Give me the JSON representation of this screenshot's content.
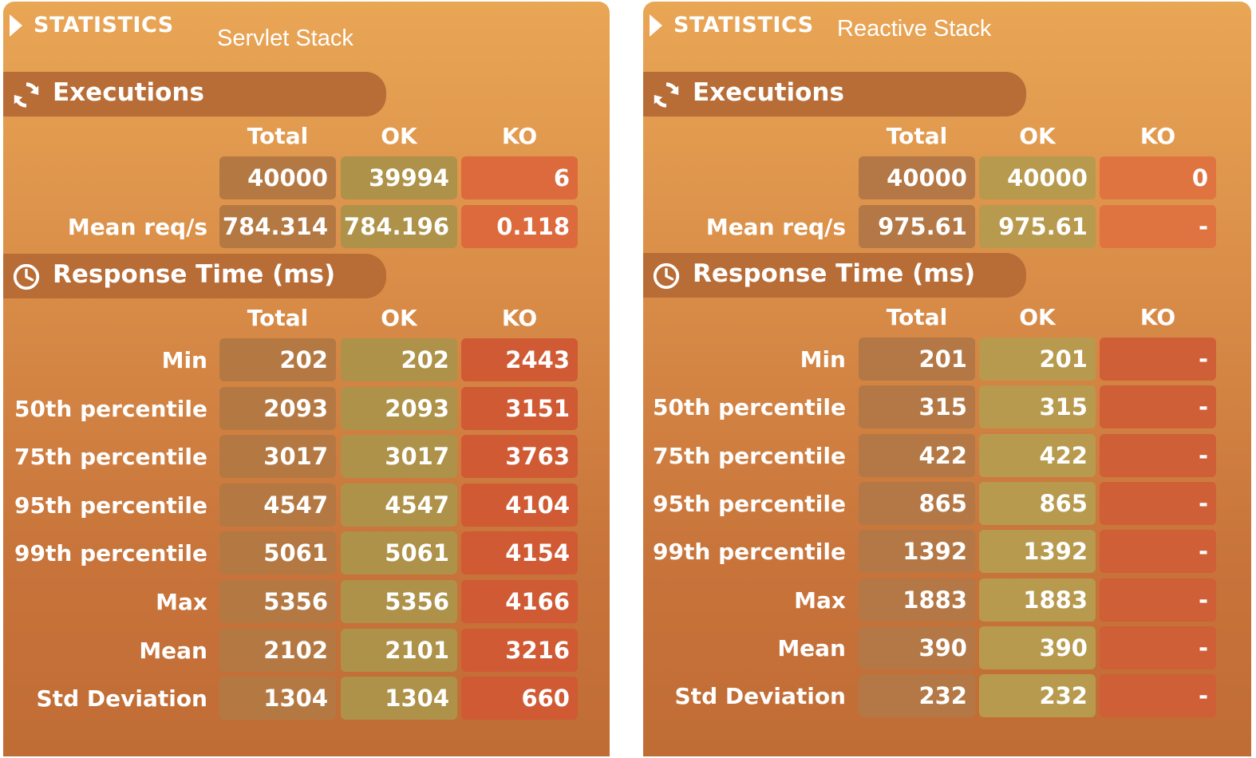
{
  "panels": [
    {
      "title": "STATISTICS",
      "subtitle": "Servlet Stack",
      "executions": {
        "section_label": "Executions",
        "headers": [
          "Total",
          "OK",
          "KO"
        ],
        "count": {
          "label": "",
          "total": "40000",
          "ok": "39994",
          "ko": "6"
        },
        "mean_req": {
          "label": "Mean req/s",
          "total": "784.314",
          "ok": "784.196",
          "ko": "0.118"
        }
      },
      "response_time": {
        "section_label": "Response Time (ms)",
        "headers": [
          "Total",
          "OK",
          "KO"
        ],
        "rows": [
          {
            "label": "Min",
            "total": "202",
            "ok": "202",
            "ko": "2443"
          },
          {
            "label": "50th percentile",
            "total": "2093",
            "ok": "2093",
            "ko": "3151"
          },
          {
            "label": "75th percentile",
            "total": "3017",
            "ok": "3017",
            "ko": "3763"
          },
          {
            "label": "95th percentile",
            "total": "4547",
            "ok": "4547",
            "ko": "4104"
          },
          {
            "label": "99th percentile",
            "total": "5061",
            "ok": "5061",
            "ko": "4154"
          },
          {
            "label": "Max",
            "total": "5356",
            "ok": "5356",
            "ko": "4166"
          },
          {
            "label": "Mean",
            "total": "2102",
            "ok": "2101",
            "ko": "3216"
          },
          {
            "label": "Std Deviation",
            "total": "1304",
            "ok": "1304",
            "ko": "660"
          }
        ]
      }
    },
    {
      "title": "STATISTICS",
      "subtitle": "Reactive Stack",
      "executions": {
        "section_label": "Executions",
        "headers": [
          "Total",
          "OK",
          "KO"
        ],
        "count": {
          "label": "",
          "total": "40000",
          "ok": "40000",
          "ko": "0"
        },
        "mean_req": {
          "label": "Mean req/s",
          "total": "975.61",
          "ok": "975.61",
          "ko": "-"
        }
      },
      "response_time": {
        "section_label": "Response Time (ms)",
        "headers": [
          "Total",
          "OK",
          "KO"
        ],
        "rows": [
          {
            "label": "Min",
            "total": "201",
            "ok": "201",
            "ko": "-"
          },
          {
            "label": "50th percentile",
            "total": "315",
            "ok": "315",
            "ko": "-"
          },
          {
            "label": "75th percentile",
            "total": "422",
            "ok": "422",
            "ko": "-"
          },
          {
            "label": "95th percentile",
            "total": "865",
            "ok": "865",
            "ko": "-"
          },
          {
            "label": "99th percentile",
            "total": "1392",
            "ok": "1392",
            "ko": "-"
          },
          {
            "label": "Max",
            "total": "1883",
            "ok": "1883",
            "ko": "-"
          },
          {
            "label": "Mean",
            "total": "390",
            "ok": "390",
            "ko": "-"
          },
          {
            "label": "Std Deviation",
            "total": "232",
            "ok": "232",
            "ko": "-"
          }
        ]
      }
    }
  ],
  "colors": {
    "panel_top": "#e9a655",
    "panel_bottom": "#c06c35",
    "section_bar": "#b86c36",
    "total_cell": "#b47943",
    "ok_cell": "#ae9249",
    "ko_cell": "#cf5a34"
  },
  "icons": {
    "title": "play-arrow-icon",
    "executions": "refresh-icon",
    "response_time": "clock-icon"
  }
}
